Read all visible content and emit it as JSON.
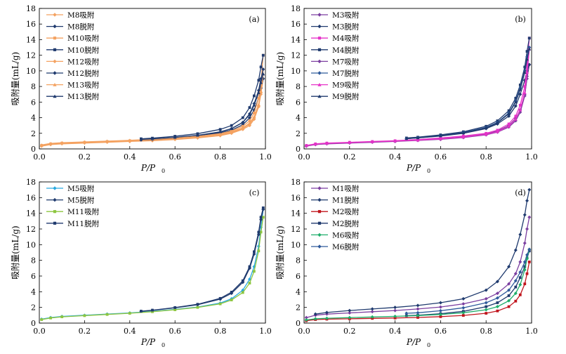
{
  "figure": {
    "y_axis_title": "吸附量(mL/g)",
    "x_axis_title_main": "P/P",
    "x_axis_title_sub": "0"
  },
  "chart_data": [
    {
      "panel": "(a)",
      "type": "line",
      "xlabel": "P/P0",
      "ylabel": "吸附量(mL/g)",
      "xlim": [
        0,
        1.0
      ],
      "ylim": [
        0,
        18
      ],
      "xticks": [
        "0.0",
        "0.2",
        "0.4",
        "0.6",
        "0.8",
        "1.0"
      ],
      "yticks": [
        "0",
        "2",
        "4",
        "6",
        "8",
        "10",
        "12",
        "14",
        "16",
        "18"
      ],
      "grid": false,
      "legend_position": "top-left",
      "series": [
        {
          "name": "M8吸附",
          "color": "#F4A261",
          "marker": "diamond",
          "x": [
            0.01,
            0.05,
            0.1,
            0.2,
            0.3,
            0.4,
            0.5,
            0.6,
            0.7,
            0.8,
            0.85,
            0.9,
            0.93,
            0.95,
            0.97,
            0.98,
            0.99
          ],
          "y": [
            0.4,
            0.6,
            0.7,
            0.8,
            0.9,
            1.0,
            1.15,
            1.3,
            1.5,
            1.8,
            2.1,
            2.6,
            3.2,
            4.0,
            5.5,
            7.0,
            9.0
          ]
        },
        {
          "name": "M8脱附",
          "color": "#1F3A6E",
          "marker": "diamond",
          "x": [
            0.99,
            0.98,
            0.97,
            0.95,
            0.93,
            0.9,
            0.85,
            0.8,
            0.7,
            0.6,
            0.5,
            0.45
          ],
          "y": [
            9.0,
            7.8,
            6.5,
            5.0,
            4.0,
            3.1,
            2.4,
            2.05,
            1.65,
            1.4,
            1.22,
            1.15
          ]
        },
        {
          "name": "M10吸附",
          "color": "#F4A261",
          "marker": "square",
          "x": [
            0.01,
            0.05,
            0.1,
            0.2,
            0.3,
            0.4,
            0.5,
            0.6,
            0.7,
            0.8,
            0.85,
            0.9,
            0.93,
            0.95,
            0.97,
            0.98,
            0.99
          ],
          "y": [
            0.45,
            0.65,
            0.75,
            0.85,
            0.95,
            1.05,
            1.2,
            1.4,
            1.6,
            1.95,
            2.3,
            2.9,
            3.6,
            4.6,
            6.5,
            8.5,
            12.0
          ]
        },
        {
          "name": "M10脱附",
          "color": "#1F3A6E",
          "marker": "square",
          "x": [
            0.99,
            0.98,
            0.97,
            0.95,
            0.93,
            0.9,
            0.85,
            0.8,
            0.7,
            0.6,
            0.5,
            0.45
          ],
          "y": [
            12.0,
            10.5,
            8.8,
            6.8,
            5.3,
            4.0,
            3.0,
            2.5,
            1.95,
            1.62,
            1.38,
            1.3
          ]
        },
        {
          "name": "M12吸附",
          "color": "#F4A261",
          "marker": "diamond",
          "x": [
            0.01,
            0.05,
            0.1,
            0.2,
            0.3,
            0.4,
            0.5,
            0.6,
            0.7,
            0.8,
            0.85,
            0.9,
            0.93,
            0.95,
            0.97,
            0.98,
            0.99
          ],
          "y": [
            0.35,
            0.55,
            0.65,
            0.75,
            0.85,
            0.95,
            1.05,
            1.2,
            1.4,
            1.7,
            2.0,
            2.5,
            3.0,
            3.8,
            5.4,
            7.2,
            10.2
          ]
        },
        {
          "name": "M12脱附",
          "color": "#1F3A6E",
          "marker": "diamond",
          "x": [
            0.99,
            0.98,
            0.97,
            0.95,
            0.93,
            0.9,
            0.85,
            0.8,
            0.7,
            0.6,
            0.5,
            0.45
          ],
          "y": [
            10.2,
            9.0,
            7.5,
            5.8,
            4.5,
            3.4,
            2.6,
            2.15,
            1.7,
            1.42,
            1.22,
            1.15
          ]
        },
        {
          "name": "M13吸附",
          "color": "#F4A261",
          "marker": "triangle",
          "x": [
            0.01,
            0.05,
            0.1,
            0.2,
            0.3,
            0.4,
            0.5,
            0.6,
            0.7,
            0.8,
            0.85,
            0.9,
            0.93,
            0.95,
            0.97,
            0.98,
            0.99
          ],
          "y": [
            0.5,
            0.7,
            0.8,
            0.9,
            1.0,
            1.1,
            1.25,
            1.4,
            1.6,
            1.9,
            2.2,
            2.7,
            3.3,
            4.1,
            5.7,
            7.4,
            9.6
          ]
        },
        {
          "name": "M13脱附",
          "color": "#1F3A6E",
          "marker": "triangle",
          "x": [
            0.99,
            0.98,
            0.97,
            0.95,
            0.93,
            0.9,
            0.85,
            0.8,
            0.7,
            0.6,
            0.5,
            0.45
          ],
          "y": [
            9.6,
            8.5,
            7.2,
            5.6,
            4.4,
            3.4,
            2.6,
            2.2,
            1.75,
            1.48,
            1.3,
            1.22
          ]
        }
      ]
    },
    {
      "panel": "(b)",
      "type": "line",
      "xlabel": "P/P0",
      "ylabel": "吸附量(mL/g)",
      "xlim": [
        0,
        1.0
      ],
      "ylim": [
        0,
        18
      ],
      "xticks": [
        "0.0",
        "0.2",
        "0.4",
        "0.6",
        "0.8",
        "1.0"
      ],
      "yticks": [
        "0",
        "2",
        "4",
        "6",
        "8",
        "10",
        "12",
        "14",
        "16",
        "18"
      ],
      "grid": false,
      "legend_position": "top-left",
      "series": [
        {
          "name": "M3吸附",
          "color": "#7B3FA0",
          "marker": "diamond",
          "x": [
            0.01,
            0.05,
            0.1,
            0.2,
            0.3,
            0.4,
            0.5,
            0.6,
            0.7,
            0.8,
            0.85,
            0.9,
            0.93,
            0.95,
            0.97,
            0.98,
            0.99
          ],
          "y": [
            0.4,
            0.6,
            0.7,
            0.8,
            0.9,
            1.0,
            1.15,
            1.3,
            1.55,
            1.9,
            2.3,
            3.0,
            3.9,
            5.0,
            7.0,
            9.0,
            10.8
          ]
        },
        {
          "name": "M3脱附",
          "color": "#1F3A6E",
          "marker": "diamond",
          "x": [
            0.99,
            0.98,
            0.97,
            0.95,
            0.93,
            0.9,
            0.85,
            0.8,
            0.7,
            0.6,
            0.5,
            0.45
          ],
          "y": [
            10.8,
            10.0,
            8.8,
            7.0,
            5.5,
            4.2,
            3.2,
            2.6,
            2.0,
            1.65,
            1.4,
            1.3
          ]
        },
        {
          "name": "M4吸附",
          "color": "#E632C8",
          "marker": "square",
          "x": [
            0.01,
            0.05,
            0.1,
            0.2,
            0.3,
            0.4,
            0.5,
            0.6,
            0.7,
            0.8,
            0.85,
            0.9,
            0.93,
            0.95,
            0.97,
            0.98,
            0.99
          ],
          "y": [
            0.45,
            0.65,
            0.75,
            0.85,
            0.95,
            1.05,
            1.2,
            1.4,
            1.65,
            2.0,
            2.4,
            3.2,
            4.2,
            5.6,
            8.0,
            10.8,
            14.2
          ]
        },
        {
          "name": "M4脱附",
          "color": "#1F3A6E",
          "marker": "square",
          "x": [
            0.99,
            0.98,
            0.97,
            0.95,
            0.93,
            0.9,
            0.85,
            0.8,
            0.7,
            0.6,
            0.5,
            0.45
          ],
          "y": [
            14.2,
            12.5,
            10.5,
            8.2,
            6.5,
            4.9,
            3.6,
            2.9,
            2.2,
            1.8,
            1.5,
            1.4
          ]
        },
        {
          "name": "M7吸附",
          "color": "#7B3FA0",
          "marker": "diamond",
          "x": [
            0.01,
            0.05,
            0.1,
            0.2,
            0.3,
            0.4,
            0.5,
            0.6,
            0.7,
            0.8,
            0.85,
            0.9,
            0.93,
            0.95,
            0.97,
            0.98,
            0.99
          ],
          "y": [
            0.35,
            0.55,
            0.65,
            0.75,
            0.85,
            0.95,
            1.08,
            1.22,
            1.45,
            1.8,
            2.15,
            2.8,
            3.6,
            4.7,
            6.8,
            9.3,
            13.0
          ]
        },
        {
          "name": "M7脱附",
          "color": "#2E5A9B",
          "marker": "diamond",
          "x": [
            0.99,
            0.98,
            0.97,
            0.95,
            0.93,
            0.9,
            0.85,
            0.8,
            0.7,
            0.6,
            0.5,
            0.45
          ],
          "y": [
            13.0,
            11.8,
            10.0,
            7.8,
            6.1,
            4.6,
            3.4,
            2.75,
            2.1,
            1.7,
            1.42,
            1.32
          ]
        },
        {
          "name": "M9吸附",
          "color": "#E632C8",
          "marker": "triangle",
          "x": [
            0.01,
            0.05,
            0.1,
            0.2,
            0.3,
            0.4,
            0.5,
            0.6,
            0.7,
            0.8,
            0.85,
            0.9,
            0.93,
            0.95,
            0.97,
            0.98,
            0.99
          ],
          "y": [
            0.4,
            0.6,
            0.7,
            0.8,
            0.9,
            1.0,
            1.12,
            1.28,
            1.5,
            1.85,
            2.2,
            2.9,
            3.8,
            5.0,
            7.2,
            9.8,
            12.8
          ]
        },
        {
          "name": "M9脱附",
          "color": "#1F3A6E",
          "marker": "triangle",
          "x": [
            0.99,
            0.98,
            0.97,
            0.95,
            0.93,
            0.9,
            0.85,
            0.8,
            0.7,
            0.6,
            0.5,
            0.45
          ],
          "y": [
            12.8,
            11.5,
            9.8,
            7.6,
            6.0,
            4.5,
            3.35,
            2.7,
            2.05,
            1.68,
            1.42,
            1.32
          ]
        }
      ]
    },
    {
      "panel": "(c)",
      "type": "line",
      "xlabel": "P/P0",
      "ylabel": "吸附量(mL/g)",
      "xlim": [
        0,
        1.0
      ],
      "ylim": [
        0,
        18
      ],
      "xticks": [
        "0.0",
        "0.2",
        "0.4",
        "0.6",
        "0.8",
        "1.0"
      ],
      "yticks": [
        "0",
        "2",
        "4",
        "6",
        "8",
        "10",
        "12",
        "14",
        "16",
        "18"
      ],
      "grid": false,
      "legend_position": "top-left",
      "series": [
        {
          "name": "M5吸附",
          "color": "#29A9E0",
          "marker": "diamond",
          "x": [
            0.01,
            0.05,
            0.1,
            0.2,
            0.3,
            0.4,
            0.5,
            0.6,
            0.7,
            0.8,
            0.85,
            0.9,
            0.93,
            0.95,
            0.97,
            0.98,
            0.99
          ],
          "y": [
            0.5,
            0.7,
            0.85,
            1.0,
            1.15,
            1.3,
            1.5,
            1.75,
            2.05,
            2.55,
            3.1,
            4.2,
            5.6,
            7.2,
            9.8,
            12.2,
            14.5
          ]
        },
        {
          "name": "M5脱附",
          "color": "#1F3A6E",
          "marker": "diamond",
          "x": [
            0.99,
            0.98,
            0.97,
            0.95,
            0.93,
            0.9,
            0.85,
            0.8,
            0.7,
            0.6,
            0.5,
            0.45
          ],
          "y": [
            14.5,
            13.2,
            11.3,
            8.8,
            7.0,
            5.2,
            3.8,
            3.05,
            2.35,
            1.95,
            1.62,
            1.5
          ]
        },
        {
          "name": "M11吸附",
          "color": "#8DC63F",
          "marker": "square",
          "x": [
            0.01,
            0.05,
            0.1,
            0.2,
            0.3,
            0.4,
            0.5,
            0.6,
            0.7,
            0.8,
            0.85,
            0.9,
            0.93,
            0.95,
            0.97,
            0.98,
            0.99
          ],
          "y": [
            0.45,
            0.65,
            0.8,
            0.95,
            1.1,
            1.25,
            1.45,
            1.7,
            2.0,
            2.45,
            2.95,
            3.9,
            5.1,
            6.6,
            9.2,
            11.6,
            13.5
          ]
        },
        {
          "name": "M11脱附",
          "color": "#1F3A6E",
          "marker": "square",
          "x": [
            0.99,
            0.98,
            0.97,
            0.95,
            0.93,
            0.9,
            0.85,
            0.8,
            0.7,
            0.6,
            0.5,
            0.45
          ],
          "y": [
            14.7,
            13.5,
            11.6,
            9.1,
            7.2,
            5.4,
            3.95,
            3.15,
            2.4,
            1.98,
            1.65,
            1.52
          ]
        }
      ]
    },
    {
      "panel": "(d)",
      "type": "line",
      "xlabel": "P/P0",
      "ylabel": "吸附量(mL/g)",
      "xlim": [
        0,
        1.0
      ],
      "ylim": [
        0,
        18
      ],
      "xticks": [
        "0.0",
        "0.2",
        "0.4",
        "0.6",
        "0.8",
        "1.0"
      ],
      "yticks": [
        "0",
        "2",
        "4",
        "6",
        "8",
        "10",
        "12",
        "14",
        "16",
        "18"
      ],
      "grid": false,
      "legend_position": "top-left",
      "series": [
        {
          "name": "M1吸附",
          "color": "#7B3FA0",
          "marker": "diamond",
          "x": [
            0.01,
            0.05,
            0.1,
            0.2,
            0.3,
            0.4,
            0.5,
            0.6,
            0.7,
            0.8,
            0.85,
            0.9,
            0.93,
            0.95,
            0.97,
            0.98,
            0.99
          ],
          "y": [
            0.7,
            1.0,
            1.15,
            1.3,
            1.45,
            1.6,
            1.8,
            2.05,
            2.45,
            3.1,
            3.8,
            5.0,
            6.3,
            7.8,
            10.2,
            12.0,
            13.5
          ]
        },
        {
          "name": "M1脱附",
          "color": "#1F3A6E",
          "marker": "diamond",
          "x": [
            0.99,
            0.98,
            0.97,
            0.95,
            0.93,
            0.9,
            0.85,
            0.8,
            0.7,
            0.6,
            0.5,
            0.4,
            0.3,
            0.2,
            0.1,
            0.05
          ],
          "y": [
            17.0,
            15.6,
            13.8,
            11.3,
            9.3,
            7.2,
            5.3,
            4.2,
            3.1,
            2.6,
            2.25,
            2.0,
            1.8,
            1.6,
            1.35,
            1.15
          ]
        },
        {
          "name": "M2吸附",
          "color": "#C0141C",
          "marker": "square",
          "x": [
            0.01,
            0.05,
            0.1,
            0.2,
            0.3,
            0.4,
            0.5,
            0.6,
            0.7,
            0.8,
            0.85,
            0.9,
            0.93,
            0.95,
            0.97,
            0.98,
            0.99
          ],
          "y": [
            0.3,
            0.45,
            0.5,
            0.55,
            0.6,
            0.65,
            0.72,
            0.82,
            0.98,
            1.25,
            1.55,
            2.1,
            2.8,
            3.6,
            5.0,
            6.3,
            7.8
          ]
        },
        {
          "name": "M2脱附",
          "color": "#1F3A6E",
          "marker": "square",
          "x": [
            0.99,
            0.98,
            0.97,
            0.95,
            0.93,
            0.9,
            0.85,
            0.8,
            0.7,
            0.6,
            0.5,
            0.45
          ],
          "y": [
            9.2,
            8.3,
            7.2,
            5.8,
            4.6,
            3.5,
            2.6,
            2.1,
            1.5,
            1.2,
            1.0,
            0.95
          ]
        },
        {
          "name": "M6吸附",
          "color": "#1FAE6A",
          "marker": "diamond",
          "x": [
            0.01,
            0.05,
            0.1,
            0.2,
            0.3,
            0.4,
            0.5,
            0.6,
            0.7,
            0.8,
            0.85,
            0.9,
            0.93,
            0.95,
            0.97,
            0.98,
            0.99
          ],
          "y": [
            0.4,
            0.55,
            0.62,
            0.7,
            0.78,
            0.86,
            0.96,
            1.1,
            1.32,
            1.7,
            2.1,
            2.85,
            3.8,
            4.9,
            6.8,
            8.2,
            9.4
          ]
        },
        {
          "name": "M6脱附",
          "color": "#2E5A9B",
          "marker": "diamond",
          "x": [
            0.99,
            0.98,
            0.97,
            0.95,
            0.93,
            0.9,
            0.85,
            0.8,
            0.7,
            0.6,
            0.5,
            0.45
          ],
          "y": [
            9.4,
            8.7,
            7.8,
            6.5,
            5.4,
            4.2,
            3.2,
            2.6,
            1.95,
            1.58,
            1.32,
            1.25
          ]
        }
      ]
    }
  ]
}
